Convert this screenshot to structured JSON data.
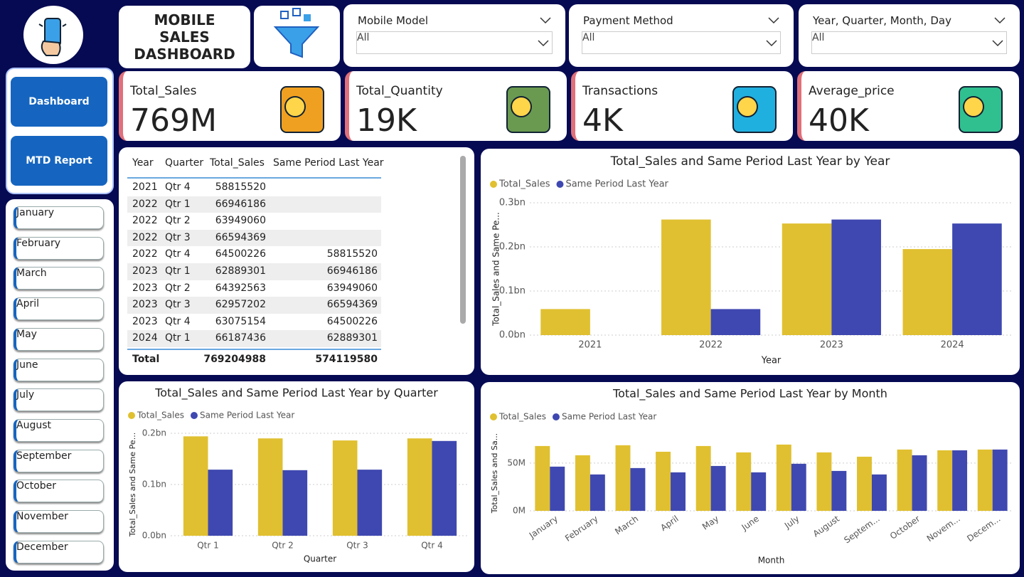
{
  "header": {
    "title": "MOBILE SALES DASHBOARD"
  },
  "slicers": [
    {
      "label": "Mobile Model",
      "value": "All"
    },
    {
      "label": "Payment Method",
      "value": "All"
    },
    {
      "label": "Year, Quarter, Month, Day",
      "value": "All"
    }
  ],
  "kpis": [
    {
      "label": "Total_Sales",
      "value": "769M"
    },
    {
      "label": "Total_Quantity",
      "value": "19K"
    },
    {
      "label": "Transactions",
      "value": "4K"
    },
    {
      "label": "Average_price",
      "value": "40K"
    }
  ],
  "nav": [
    "Dashboard",
    "MTD Report"
  ],
  "months": [
    "January",
    "February",
    "March",
    "April",
    "May",
    "June",
    "July",
    "August",
    "September",
    "October",
    "November",
    "December"
  ],
  "table": {
    "columns": [
      "Year",
      "Quarter",
      "Total_Sales",
      "Same Period Last Year"
    ],
    "rows": [
      [
        2021,
        "Qtr 4",
        58815520,
        null
      ],
      [
        2022,
        "Qtr 1",
        66946186,
        null
      ],
      [
        2022,
        "Qtr 2",
        63949060,
        null
      ],
      [
        2022,
        "Qtr 3",
        66594369,
        null
      ],
      [
        2022,
        "Qtr 4",
        64500226,
        58815520
      ],
      [
        2023,
        "Qtr 1",
        62889301,
        66946186
      ],
      [
        2023,
        "Qtr 2",
        64392563,
        63949060
      ],
      [
        2023,
        "Qtr 3",
        62957202,
        66594369
      ],
      [
        2023,
        "Qtr 4",
        63075154,
        64500226
      ],
      [
        2024,
        "Qtr 1",
        66187436,
        62889301
      ]
    ],
    "total": [
      "Total",
      769204988,
      574119580
    ]
  },
  "chart_data": [
    {
      "type": "bar",
      "title": "Total_Sales and Same Period Last Year by Year",
      "x_label": "Year",
      "y_label": "Total_Sales and Same Pe...",
      "categories": [
        "2021",
        "2022",
        "2023",
        "2024"
      ],
      "series": [
        {
          "name": "Total_Sales",
          "color": "#e0c030",
          "values": [
            0.059,
            0.262,
            0.253,
            0.195
          ]
        },
        {
          "name": "Same Period Last Year",
          "color": "#3f48b0",
          "values": [
            null,
            0.059,
            0.262,
            0.253
          ]
        }
      ],
      "ylim": [
        0,
        0.3
      ],
      "yticks": [
        {
          "value": 0,
          "label": "0.0bn"
        },
        {
          "value": 0.1,
          "label": "0.1bn"
        },
        {
          "value": 0.2,
          "label": "0.2bn"
        },
        {
          "value": 0.3,
          "label": "0.3bn"
        }
      ],
      "grid": true
    },
    {
      "type": "bar",
      "title": "Total_Sales and Same Period Last Year by Quarter",
      "x_label": "Quarter",
      "y_label": "Total_Sales and Same Pe...",
      "categories": [
        "Qtr 1",
        "Qtr 2",
        "Qtr 3",
        "Qtr 4"
      ],
      "series": [
        {
          "name": "Total_Sales",
          "color": "#e0c030",
          "values": [
            0.194,
            0.19,
            0.186,
            0.19
          ]
        },
        {
          "name": "Same Period Last Year",
          "color": "#3f48b0",
          "values": [
            0.129,
            0.128,
            0.129,
            0.185
          ]
        }
      ],
      "ylim": [
        0,
        0.2
      ],
      "yticks": [
        {
          "value": 0,
          "label": "0.0bn"
        },
        {
          "value": 0.1,
          "label": "0.1bn"
        },
        {
          "value": 0.2,
          "label": "0.2bn"
        }
      ],
      "grid": true
    },
    {
      "type": "bar",
      "title": "Total_Sales and Same Period Last Year by Month",
      "x_label": "Month",
      "y_label": "Total_Sales and Sa...",
      "categories": [
        "January",
        "February",
        "March",
        "April",
        "May",
        "June",
        "July",
        "August",
        "Septem...",
        "October",
        "Novem...",
        "Decem..."
      ],
      "series": [
        {
          "name": "Total_Sales",
          "color": "#e0c030",
          "values": [
            67.9,
            58.2,
            68.7,
            61.9,
            67.9,
            61.2,
            69.4,
            61.2,
            56.7,
            64.2,
            63.4,
            64.2
          ]
        },
        {
          "name": "Same Period Last Year",
          "color": "#3f48b0",
          "values": [
            46.3,
            38.1,
            44.8,
            40.3,
            47.0,
            40.3,
            49.3,
            41.8,
            38.1,
            58.2,
            63.4,
            64.2
          ]
        }
      ],
      "ylim": [
        0,
        79
      ],
      "yticks": [
        {
          "value": 0,
          "label": "0M"
        },
        {
          "value": 50,
          "label": "50M"
        }
      ],
      "grid": true
    }
  ]
}
